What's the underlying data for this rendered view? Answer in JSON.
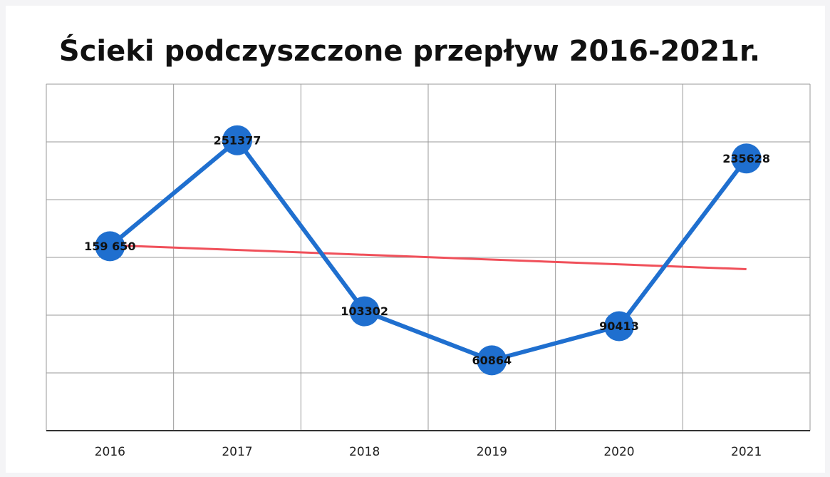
{
  "chart_data": {
    "type": "line",
    "title": "Ścieki podczyszczone  przepływ 2016-2021r.",
    "categories": [
      "2016",
      "2017",
      "2018",
      "2019",
      "2020",
      "2021"
    ],
    "series": [
      {
        "name": "przepływ",
        "color": "#1f6fcf",
        "values": [
          159650,
          251377,
          103302,
          60864,
          90413,
          235628
        ],
        "value_labels": [
          "159 650",
          "251377",
          "103302",
          "60864",
          "90413",
          "235628"
        ]
      }
    ],
    "trendline": true,
    "trendline_color": "#f0505a",
    "ylim": [
      0,
      300000
    ],
    "yticks": [
      0,
      50000,
      100000,
      150000,
      200000,
      250000,
      300000
    ],
    "grid": true
  }
}
